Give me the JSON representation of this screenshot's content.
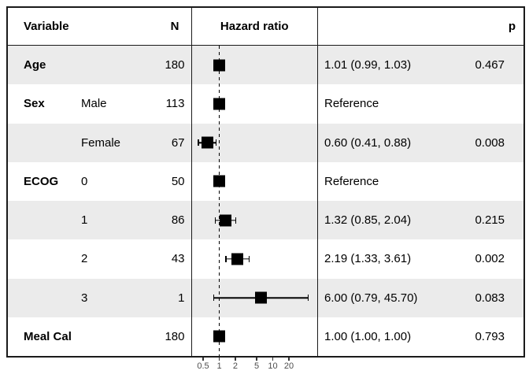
{
  "header": {
    "variable": "Variable",
    "n": "N",
    "hazard_ratio": "Hazard ratio",
    "p": "p"
  },
  "chart_data": {
    "type": "scatter",
    "subtype": "forest-plot",
    "title": "Hazard ratio",
    "x_scale": "log10",
    "x_ticks": [
      0.5,
      1,
      2,
      5,
      10,
      20
    ],
    "x_tick_labels": [
      "0.5",
      "1",
      "2",
      "5",
      "10",
      "20"
    ],
    "reference_line": 1,
    "xlim": [
      0.3,
      60
    ],
    "rows": [
      {
        "variable": "Age",
        "level": "",
        "n": "180",
        "hr": 1.01,
        "ci_low": 0.99,
        "ci_high": 1.03,
        "estimate": "1.01 (0.99, 1.03)",
        "p": "0.467"
      },
      {
        "variable": "Sex",
        "level": "Male",
        "n": "113",
        "hr": 1.0,
        "ci_low": null,
        "ci_high": null,
        "estimate": "Reference",
        "p": ""
      },
      {
        "variable": "",
        "level": "Female",
        "n": "67",
        "hr": 0.6,
        "ci_low": 0.41,
        "ci_high": 0.88,
        "estimate": "0.60 (0.41, 0.88)",
        "p": "0.008"
      },
      {
        "variable": "ECOG",
        "level": "0",
        "n": "50",
        "hr": 1.0,
        "ci_low": null,
        "ci_high": null,
        "estimate": "Reference",
        "p": ""
      },
      {
        "variable": "",
        "level": "1",
        "n": "86",
        "hr": 1.32,
        "ci_low": 0.85,
        "ci_high": 2.04,
        "estimate": "1.32 (0.85, 2.04)",
        "p": "0.215"
      },
      {
        "variable": "",
        "level": "2",
        "n": "43",
        "hr": 2.19,
        "ci_low": 1.33,
        "ci_high": 3.61,
        "estimate": "2.19 (1.33, 3.61)",
        "p": "0.002"
      },
      {
        "variable": "",
        "level": "3",
        "n": "1",
        "hr": 6.0,
        "ci_low": 0.79,
        "ci_high": 45.7,
        "estimate": "6.00 (0.79, 45.70)",
        "p": "0.083"
      },
      {
        "variable": "Meal Cal",
        "level": "",
        "n": "180",
        "hr": 1.0,
        "ci_low": 1.0,
        "ci_high": 1.0,
        "estimate": "1.00 (1.00, 1.00)",
        "p": "0.793"
      }
    ]
  },
  "colors": {
    "marker": "#000000",
    "row_shade": "#ebebeb",
    "border": "#1a1a1a",
    "axis_text": "#4d4d4d",
    "background": "#ffffff"
  }
}
